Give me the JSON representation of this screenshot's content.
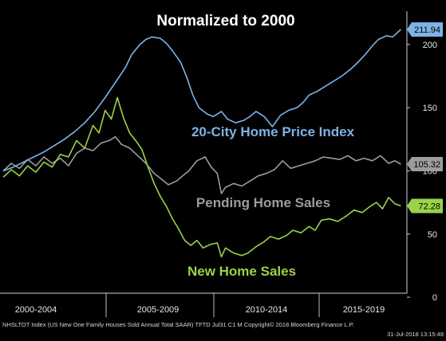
{
  "chart_data": {
    "type": "line",
    "title": "Normalized to 2000",
    "x_tick_labels": [
      "2000-2004",
      "2005-2009",
      "2010-2014",
      "2015-2019"
    ],
    "x_range": [
      2000.0,
      2019.6
    ],
    "y_ticks": [
      0,
      50,
      100,
      150,
      200
    ],
    "ylim": [
      -5,
      222
    ],
    "grid": false,
    "series": [
      {
        "name": "20-City Home Price Index",
        "color": "#7fb2e6",
        "last_value": "211.94",
        "points": [
          [
            2000.0,
            100
          ],
          [
            2000.5,
            103
          ],
          [
            2001.0,
            107
          ],
          [
            2001.5,
            111
          ],
          [
            2002.0,
            115
          ],
          [
            2002.5,
            120
          ],
          [
            2003.0,
            125
          ],
          [
            2003.5,
            131
          ],
          [
            2004.0,
            138
          ],
          [
            2004.5,
            147
          ],
          [
            2005.0,
            158
          ],
          [
            2005.5,
            170
          ],
          [
            2006.0,
            182
          ],
          [
            2006.3,
            192
          ],
          [
            2006.7,
            200
          ],
          [
            2007.0,
            204
          ],
          [
            2007.3,
            206
          ],
          [
            2007.7,
            205
          ],
          [
            2008.0,
            201
          ],
          [
            2008.3,
            195
          ],
          [
            2008.7,
            186
          ],
          [
            2009.0,
            174
          ],
          [
            2009.3,
            160
          ],
          [
            2009.6,
            150
          ],
          [
            2010.0,
            145
          ],
          [
            2010.3,
            143
          ],
          [
            2010.7,
            147
          ],
          [
            2011.0,
            141
          ],
          [
            2011.4,
            138
          ],
          [
            2011.8,
            140
          ],
          [
            2012.1,
            143
          ],
          [
            2012.4,
            147
          ],
          [
            2012.8,
            143
          ],
          [
            2013.2,
            135
          ],
          [
            2013.6,
            144
          ],
          [
            2014.0,
            148
          ],
          [
            2014.4,
            150
          ],
          [
            2014.7,
            154
          ],
          [
            2015.0,
            160
          ],
          [
            2015.4,
            163
          ],
          [
            2015.8,
            167
          ],
          [
            2016.2,
            171
          ],
          [
            2016.6,
            175
          ],
          [
            2017.0,
            180
          ],
          [
            2017.4,
            186
          ],
          [
            2017.8,
            193
          ],
          [
            2018.1,
            199
          ],
          [
            2018.4,
            204
          ],
          [
            2018.8,
            207
          ],
          [
            2019.1,
            206
          ],
          [
            2019.3,
            209
          ],
          [
            2019.5,
            211.94
          ]
        ]
      },
      {
        "name": "Pending Home Sales",
        "color": "#9c9c9c",
        "last_value": "105.32",
        "points": [
          [
            2000.0,
            100
          ],
          [
            2000.4,
            106
          ],
          [
            2000.8,
            102
          ],
          [
            2001.2,
            109
          ],
          [
            2001.6,
            104
          ],
          [
            2002.0,
            111
          ],
          [
            2002.4,
            106
          ],
          [
            2002.8,
            110
          ],
          [
            2003.2,
            104
          ],
          [
            2003.6,
            114
          ],
          [
            2004.0,
            118
          ],
          [
            2004.4,
            116
          ],
          [
            2004.8,
            122
          ],
          [
            2005.2,
            124
          ],
          [
            2005.5,
            127
          ],
          [
            2005.8,
            121
          ],
          [
            2006.2,
            118
          ],
          [
            2006.6,
            112
          ],
          [
            2007.0,
            106
          ],
          [
            2007.4,
            98
          ],
          [
            2007.8,
            93
          ],
          [
            2008.1,
            89
          ],
          [
            2008.5,
            92
          ],
          [
            2008.8,
            96
          ],
          [
            2009.1,
            100
          ],
          [
            2009.5,
            108
          ],
          [
            2009.9,
            111
          ],
          [
            2010.2,
            103
          ],
          [
            2010.5,
            98
          ],
          [
            2010.7,
            82
          ],
          [
            2010.9,
            87
          ],
          [
            2011.3,
            90
          ],
          [
            2011.7,
            88
          ],
          [
            2012.1,
            92
          ],
          [
            2012.5,
            96
          ],
          [
            2012.9,
            98
          ],
          [
            2013.3,
            101
          ],
          [
            2013.7,
            108
          ],
          [
            2014.1,
            102
          ],
          [
            2014.5,
            104
          ],
          [
            2014.9,
            106
          ],
          [
            2015.3,
            108
          ],
          [
            2015.7,
            111
          ],
          [
            2016.1,
            110
          ],
          [
            2016.5,
            109
          ],
          [
            2016.9,
            112
          ],
          [
            2017.3,
            108
          ],
          [
            2017.7,
            110
          ],
          [
            2018.1,
            108
          ],
          [
            2018.5,
            112
          ],
          [
            2018.9,
            106
          ],
          [
            2019.2,
            108
          ],
          [
            2019.5,
            105.32
          ]
        ]
      },
      {
        "name": "New Home Sales",
        "color": "#9bd248",
        "last_value": "72.28",
        "points": [
          [
            2000.0,
            95
          ],
          [
            2000.4,
            101
          ],
          [
            2000.8,
            96
          ],
          [
            2001.2,
            104
          ],
          [
            2001.6,
            99
          ],
          [
            2002.0,
            107
          ],
          [
            2002.4,
            103
          ],
          [
            2002.8,
            113
          ],
          [
            2003.2,
            111
          ],
          [
            2003.6,
            124
          ],
          [
            2004.0,
            118
          ],
          [
            2004.4,
            136
          ],
          [
            2004.7,
            130
          ],
          [
            2005.0,
            148
          ],
          [
            2005.3,
            141
          ],
          [
            2005.6,
            158
          ],
          [
            2005.9,
            142
          ],
          [
            2006.2,
            130
          ],
          [
            2006.5,
            124
          ],
          [
            2006.8,
            117
          ],
          [
            2007.1,
            103
          ],
          [
            2007.4,
            90
          ],
          [
            2007.7,
            80
          ],
          [
            2008.0,
            72
          ],
          [
            2008.3,
            62
          ],
          [
            2008.6,
            54
          ],
          [
            2008.9,
            45
          ],
          [
            2009.2,
            41
          ],
          [
            2009.5,
            45
          ],
          [
            2009.8,
            39
          ],
          [
            2010.2,
            42
          ],
          [
            2010.5,
            43
          ],
          [
            2010.7,
            32
          ],
          [
            2010.9,
            39
          ],
          [
            2011.3,
            35
          ],
          [
            2011.7,
            33
          ],
          [
            2012.0,
            35
          ],
          [
            2012.4,
            40
          ],
          [
            2012.8,
            44
          ],
          [
            2013.1,
            48
          ],
          [
            2013.5,
            46
          ],
          [
            2013.9,
            49
          ],
          [
            2014.2,
            53
          ],
          [
            2014.6,
            51
          ],
          [
            2015.0,
            56
          ],
          [
            2015.3,
            53
          ],
          [
            2015.6,
            61
          ],
          [
            2016.0,
            62
          ],
          [
            2016.4,
            60
          ],
          [
            2016.8,
            64
          ],
          [
            2017.2,
            69
          ],
          [
            2017.6,
            67
          ],
          [
            2018.0,
            72
          ],
          [
            2018.3,
            75
          ],
          [
            2018.6,
            70
          ],
          [
            2018.9,
            79
          ],
          [
            2019.2,
            74
          ],
          [
            2019.5,
            72.28
          ]
        ]
      }
    ],
    "annotations": [
      {
        "text": "20-City Home Price Index",
        "series": 0
      },
      {
        "text": "Pending Home Sales",
        "series": 1
      },
      {
        "text": "New Home Sales",
        "series": 2
      }
    ]
  },
  "footer": {
    "line1": "NHSLTOT Index (US New One Family Houses Sold Annual Total SAAR) TFTD Jul31 C1  M Copyright© 2018 Bloomberg Finance L.P.",
    "line2": "31-Jul-2018 13:15:48"
  }
}
